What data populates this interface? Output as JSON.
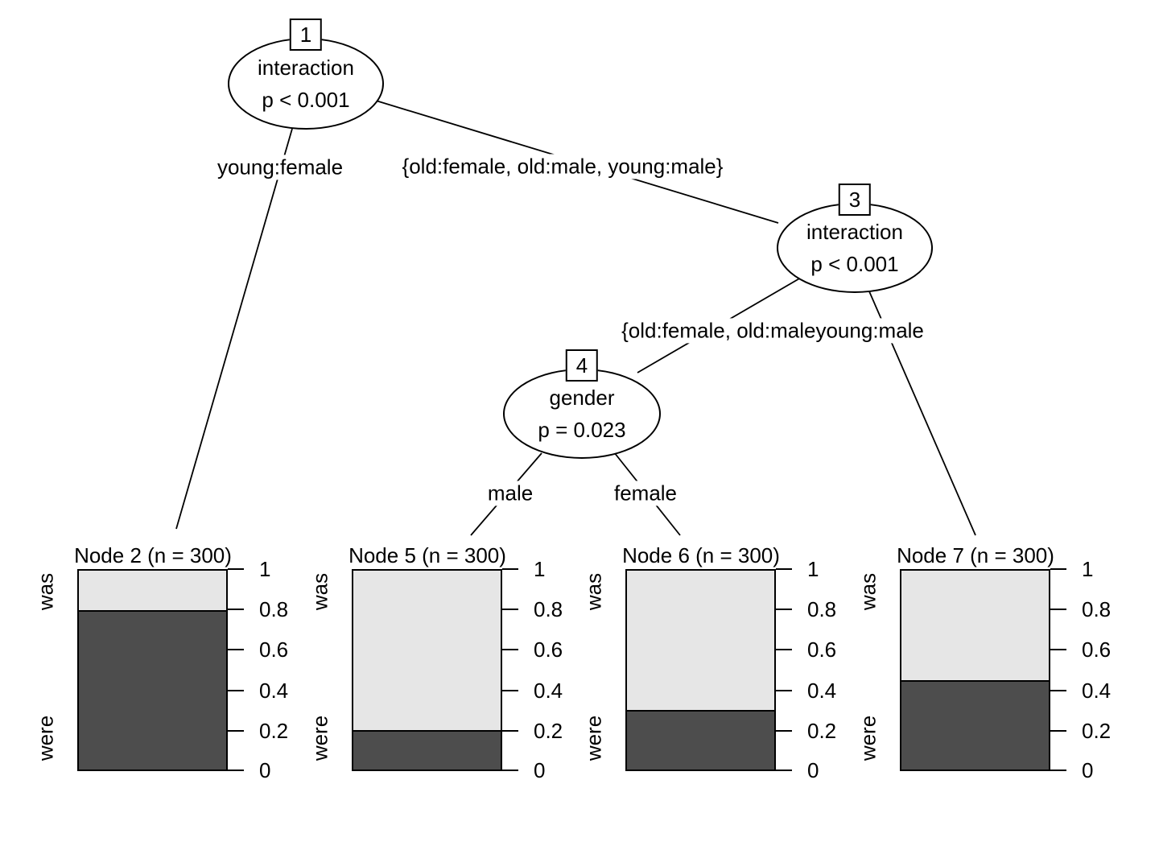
{
  "figure": {
    "kind": "conditional inference tree plot",
    "background_color": "#ffffff",
    "text_color": "#000000",
    "line_color": "#000000"
  },
  "tree": {
    "inner_nodes": [
      {
        "id": "1",
        "variable": "interaction",
        "p_value": "p < 0.001"
      },
      {
        "id": "3",
        "variable": "interaction",
        "p_value": "p < 0.001"
      },
      {
        "id": "4",
        "variable": "gender",
        "p_value": "p = 0.023"
      }
    ],
    "edge_labels": [
      "young:female",
      "{old:female, old:male, young:male}",
      "{old:female, old:male",
      "young:male",
      "male",
      "female"
    ]
  },
  "chart_data": {
    "type": "bar",
    "subtype": "stacked-proportion bars at terminal nodes, y axis on right",
    "categories": [
      "was",
      "were"
    ],
    "colors": {
      "was": "#E6E6E6",
      "were": "#4D4D4D"
    },
    "ylim": [
      0,
      1
    ],
    "yticks": [
      1,
      0.8,
      0.6,
      0.4,
      0.2,
      0
    ],
    "ytick_labels": [
      "1",
      "0.8",
      "0.6",
      "0.4",
      "0.2",
      "0"
    ],
    "grid": false,
    "panels": [
      {
        "title": "Node 2 (n = 300)",
        "n": 300,
        "proportions": {
          "was": 0.2,
          "were": 0.8
        }
      },
      {
        "title": "Node 5 (n = 300)",
        "n": 300,
        "proportions": {
          "was": 0.8,
          "were": 0.2
        }
      },
      {
        "title": "Node 6 (n = 300)",
        "n": 300,
        "proportions": {
          "was": 0.7,
          "were": 0.3
        }
      },
      {
        "title": "Node 7 (n = 300)",
        "n": 300,
        "proportions": {
          "was": 0.55,
          "were": 0.45
        }
      }
    ]
  }
}
